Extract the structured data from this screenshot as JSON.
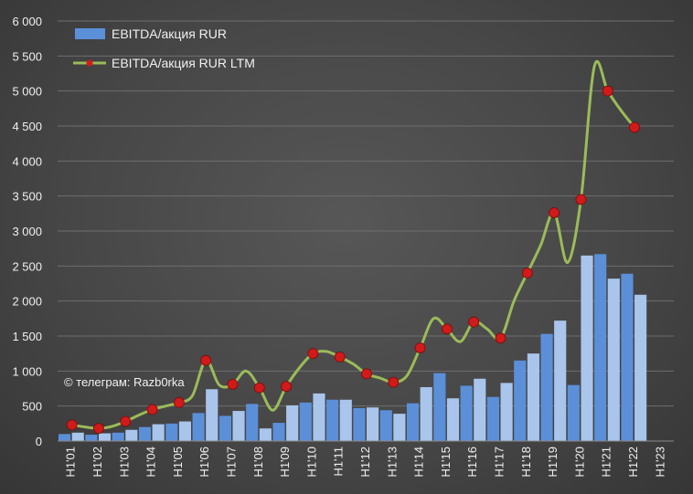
{
  "chart_data": {
    "type": "bar",
    "title": "",
    "xlabel": "",
    "ylabel": "",
    "ylim": [
      0,
      6000
    ],
    "y_ticks": [
      "0",
      "500",
      "1 000",
      "1 500",
      "2 000",
      "2 500",
      "3 000",
      "3 500",
      "4 000",
      "4 500",
      "5 000",
      "5 500",
      "6 000"
    ],
    "y_tick_values": [
      0,
      500,
      1000,
      1500,
      2000,
      2500,
      3000,
      3500,
      4000,
      4500,
      5000,
      5500,
      6000
    ],
    "grid": true,
    "legend_position": "top-left",
    "x_axis_labels": [
      "H1'01",
      "H1'02",
      "H1'03",
      "H1'04",
      "H1'05",
      "H1'06",
      "H1'07",
      "H1'08",
      "H1'09",
      "H1'10",
      "H1'11",
      "H1'12",
      "H1'13",
      "H1'14",
      "H1'15",
      "H1'16",
      "H1'17",
      "H1'18",
      "H1'19",
      "H1'20",
      "H1'21",
      "H1'22",
      "H1'23"
    ],
    "series": [
      {
        "name": "EBITDA/акция RUR",
        "type": "bar",
        "color_h1": "#5b8fd8",
        "color_h2": "#a9c5eb",
        "values": [
          100,
          120,
          90,
          110,
          120,
          160,
          200,
          240,
          250,
          280,
          400,
          740,
          360,
          430,
          530,
          180,
          260,
          510,
          550,
          680,
          590,
          590,
          470,
          480,
          440,
          390,
          540,
          770,
          970,
          610,
          790,
          890,
          630,
          830,
          1150,
          1250,
          1530,
          1720,
          800,
          2650,
          2670,
          2320,
          2390,
          2090
        ]
      },
      {
        "name": "EBITDA/акция RUR LTM",
        "type": "line",
        "color": "#9bbb59",
        "marker_color": "#d11a1a",
        "values": [
          230,
          200,
          180,
          210,
          280,
          370,
          450,
          500,
          550,
          650,
          1150,
          800,
          810,
          1000,
          760,
          440,
          780,
          1050,
          1250,
          1280,
          1200,
          1100,
          960,
          900,
          840,
          930,
          1330,
          1750,
          1600,
          1420,
          1700,
          1600,
          1470,
          2000,
          2400,
          2800,
          3260,
          2550,
          3450,
          5350,
          5000,
          4720,
          4480
        ]
      }
    ]
  },
  "watermark": "© телеграм: Razb0rka"
}
